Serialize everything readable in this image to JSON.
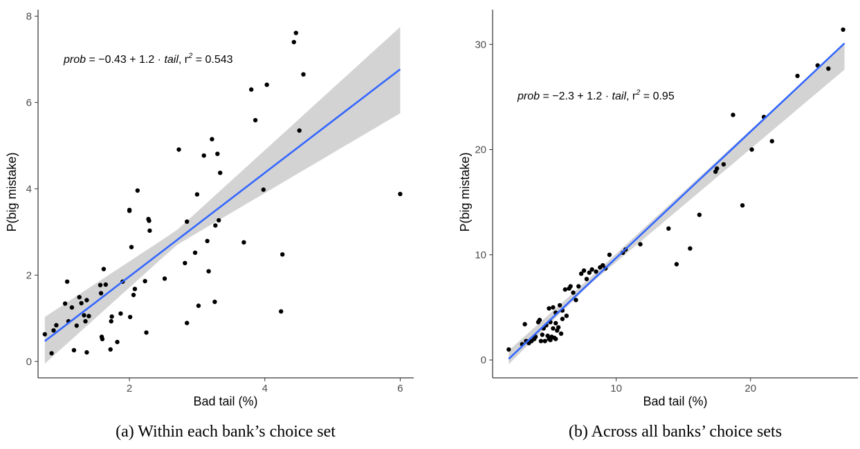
{
  "chart_data": [
    {
      "type": "scatter",
      "xlabel": "Bad tail (%)",
      "ylabel": "P(big mistake)",
      "caption": "(a) Within each bank’s choice set",
      "annotation": {
        "var1": "prob",
        "mid": " = −0.43 + 1.2 · ",
        "var2": "tail",
        "r2_prefix": ",  r",
        "r2_exp": "2",
        "r2_value": " = 0.543"
      },
      "xlim": [
        0.65,
        6.2
      ],
      "ylim": [
        -0.38,
        8.15
      ],
      "xticks": [
        2,
        4,
        6
      ],
      "yticks": [
        0,
        2,
        4,
        6,
        8
      ],
      "fit": {
        "intercept": -0.43,
        "slope": 1.2,
        "x_range": [
          0.75,
          6.0
        ]
      },
      "ci_band": {
        "x": [
          0.75,
          2.7,
          6.0
        ],
        "lower": [
          -0.05,
          2.7,
          5.75
        ],
        "upper": [
          1.03,
          3.04,
          7.75
        ]
      },
      "x": [
        0.75,
        0.85,
        0.88,
        0.92,
        1.05,
        1.08,
        1.1,
        1.15,
        1.18,
        1.22,
        1.26,
        1.29,
        1.33,
        1.35,
        1.37,
        1.37,
        1.4,
        1.57,
        1.58,
        1.59,
        1.6,
        1.62,
        1.65,
        1.72,
        1.73,
        1.74,
        1.82,
        1.87,
        1.9,
        2.0,
        2.01,
        2.03,
        2.06,
        2.08,
        2.12,
        2.23,
        2.25,
        2.28,
        2.29,
        2.3,
        2.52,
        2.73,
        2.82,
        2.85,
        2.85,
        2.97,
        3.0,
        3.02,
        3.1,
        3.15,
        3.17,
        3.22,
        3.26,
        3.27,
        3.3,
        3.32,
        3.34,
        3.69,
        3.8,
        3.86,
        4.03,
        4.24,
        4.26,
        4.43,
        4.46,
        4.51,
        4.57,
        3.98,
        6.0,
        2.0
      ],
      "y": [
        0.63,
        0.19,
        0.72,
        0.84,
        1.34,
        1.85,
        0.93,
        1.25,
        0.26,
        0.83,
        1.49,
        1.35,
        1.07,
        0.93,
        0.21,
        1.42,
        1.05,
        1.77,
        1.58,
        0.57,
        0.52,
        2.14,
        1.78,
        0.28,
        0.93,
        1.04,
        0.45,
        1.11,
        1.85,
        3.49,
        1.03,
        2.65,
        1.54,
        1.68,
        3.96,
        1.86,
        0.67,
        3.3,
        3.26,
        3.03,
        1.92,
        4.91,
        2.28,
        0.89,
        3.24,
        2.52,
        3.87,
        1.29,
        4.77,
        2.79,
        2.09,
        5.15,
        1.38,
        3.15,
        4.81,
        3.27,
        4.37,
        2.76,
        6.3,
        5.59,
        6.41,
        1.16,
        2.48,
        7.4,
        7.61,
        5.35,
        6.65,
        3.98,
        3.88,
        3.51
      ]
    },
    {
      "type": "scatter",
      "xlabel": "Bad tail (%)",
      "ylabel": "P(big mistake)",
      "caption": "(b) Across all banks’ choice sets",
      "annotation": {
        "var1": "prob",
        "mid": " = −2.3 + 1.2 · ",
        "var2": "tail",
        "r2_prefix": ",  r",
        "r2_exp": "2",
        "r2_value": " = 0.95"
      },
      "xlim": [
        0.8,
        28.0
      ],
      "ylim": [
        -1.7,
        33.3
      ],
      "xticks": [
        10,
        20
      ],
      "yticks": [
        0,
        10,
        20,
        30
      ],
      "fit": {
        "intercept": -2.3,
        "slope": 1.2,
        "x_range": [
          2.0,
          27.0
        ]
      },
      "ci_band": {
        "x": [
          2.0,
          8.0,
          27.0
        ],
        "lower": [
          -0.4,
          7.15,
          27.6
        ],
        "upper": [
          0.9,
          7.75,
          30.1
        ]
      },
      "x": [
        2.0,
        3.0,
        3.2,
        3.3,
        3.5,
        3.7,
        3.9,
        4.0,
        4.2,
        4.4,
        4.5,
        4.6,
        4.7,
        4.8,
        4.9,
        5.0,
        5.0,
        5.1,
        5.1,
        5.2,
        5.3,
        5.3,
        5.4,
        5.5,
        5.5,
        5.6,
        5.7,
        5.8,
        5.9,
        6.0,
        6.0,
        6.2,
        6.3,
        6.5,
        6.6,
        6.8,
        7.0,
        7.2,
        7.4,
        7.6,
        7.8,
        8.0,
        8.2,
        8.5,
        8.8,
        9.0,
        9.2,
        9.5,
        10.5,
        10.7,
        11.8,
        13.9,
        14.5,
        15.5,
        16.2,
        17.4,
        17.5,
        18.0,
        18.7,
        19.4,
        20.1,
        21.0,
        21.6,
        23.5,
        25.0,
        25.8,
        26.9,
        4.3,
        5.5
      ],
      "y": [
        1.0,
        1.5,
        3.4,
        1.8,
        1.6,
        1.8,
        2.0,
        2.2,
        3.6,
        1.8,
        2.4,
        3.0,
        1.8,
        3.3,
        2.3,
        4.9,
        2.0,
        3.6,
        1.9,
        2.2,
        5.0,
        3.0,
        2.1,
        3.5,
        4.5,
        2.8,
        3.1,
        5.2,
        2.5,
        4.7,
        3.9,
        6.7,
        4.2,
        6.8,
        7.0,
        6.4,
        5.7,
        7.0,
        8.2,
        8.5,
        7.7,
        8.3,
        8.6,
        8.4,
        8.8,
        9.0,
        8.7,
        10.0,
        10.2,
        10.5,
        11.0,
        12.5,
        9.1,
        10.6,
        13.8,
        17.9,
        18.2,
        18.6,
        23.3,
        14.7,
        20.0,
        23.1,
        20.8,
        27.0,
        28.0,
        27.7,
        31.4,
        3.8,
        2.0
      ]
    }
  ]
}
